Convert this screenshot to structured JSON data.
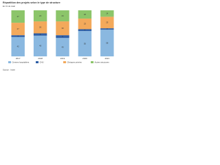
{
  "chart_data": {
    "type": "bar",
    "stacked": true,
    "title": "Répartition des projets selon le type de structure",
    "subtitle": "En % du total",
    "source": "Source : Insee",
    "categories": [
      "2017",
      "2018",
      "2019",
      "2020",
      "2021"
    ],
    "series": [
      {
        "name": "Centres hospitaliers",
        "color": "#8ab8e0",
        "values": [
          42,
          45,
          40,
          55,
          58
        ]
      },
      {
        "name": "CHU",
        "color": "#2f5fa6",
        "values": [
          4,
          5,
          6,
          4,
          3
        ]
      },
      {
        "name": "Cliniques privées",
        "color": "#f3a95b",
        "values": [
          27,
          26,
          30,
          23,
          25
        ]
      },
      {
        "name": "Autres structures",
        "color": "#8cc56a",
        "values": [
          27,
          24,
          24,
          18,
          14
        ]
      }
    ],
    "ylim": [
      0,
      100
    ]
  }
}
